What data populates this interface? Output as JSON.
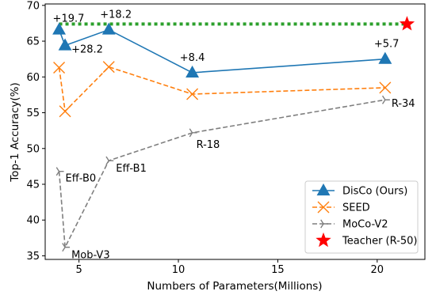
{
  "chart_data": {
    "type": "line",
    "xlabel": "Numbers of Parameters(Millions)",
    "ylabel": "Top-1 Accuracy(%)",
    "xlim": [
      3.3,
      22.4
    ],
    "ylim": [
      34.5,
      70.2
    ],
    "xticks": [
      5,
      10,
      15,
      20
    ],
    "yticks": [
      35,
      40,
      45,
      50,
      55,
      60,
      65,
      70
    ],
    "grid": false,
    "legend_position": "lower-right",
    "series": [
      {
        "name": "DisCo (Ours)",
        "marker": "triangle",
        "linestyle": "solid",
        "color": "#1f77b4",
        "points": [
          {
            "x": 4.0,
            "y": 66.6,
            "label": "+19.7"
          },
          {
            "x": 4.3,
            "y": 64.4,
            "label": "+28.2"
          },
          {
            "x": 6.5,
            "y": 66.6,
            "label": "+18.2"
          },
          {
            "x": 10.7,
            "y": 60.6,
            "label": "+8.4"
          },
          {
            "x": 20.4,
            "y": 62.5,
            "label": "+5.7"
          }
        ]
      },
      {
        "name": "SEED",
        "marker": "x",
        "linestyle": "dashed",
        "color": "#ff7f0e",
        "points": [
          {
            "x": 4.0,
            "y": 61.3
          },
          {
            "x": 4.3,
            "y": 55.2
          },
          {
            "x": 6.5,
            "y": 61.4
          },
          {
            "x": 10.7,
            "y": 57.6
          },
          {
            "x": 20.4,
            "y": 58.5
          }
        ]
      },
      {
        "name": "MoCo-V2",
        "marker": "tri-right",
        "linestyle": "dashed",
        "color": "#7f7f7f",
        "points": [
          {
            "x": 4.0,
            "y": 46.8,
            "label": "Eff-B0"
          },
          {
            "x": 4.3,
            "y": 36.2,
            "label": "Mob-V3"
          },
          {
            "x": 6.5,
            "y": 48.3,
            "label": "Eff-B1"
          },
          {
            "x": 10.7,
            "y": 52.2,
            "label": "R-18"
          },
          {
            "x": 20.4,
            "y": 56.8,
            "label": "R-34"
          }
        ]
      },
      {
        "name": "Teacher (R-50)",
        "marker": "star",
        "color": "#ff0000",
        "points": [
          {
            "x": 21.5,
            "y": 67.4
          }
        ]
      }
    ],
    "reference_line": {
      "y": 67.4,
      "x_from": 4.0,
      "x_to": 21.5,
      "color": "#2ca02c",
      "linestyle": "dotted"
    }
  }
}
